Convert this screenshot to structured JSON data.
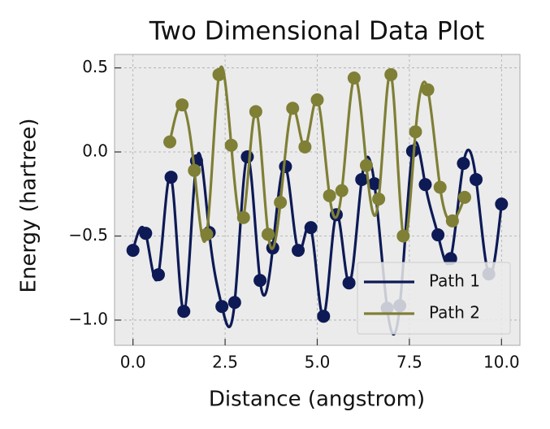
{
  "chart_data": {
    "type": "line",
    "title": "Two Dimensional Data Plot",
    "x_label": "Distance (angstrom)",
    "y_label": "Energy (hartree)",
    "xlim": [
      -0.5,
      10.5
    ],
    "ylim": [
      -1.15,
      0.58
    ],
    "xticks": [
      {
        "value": 0,
        "label": "0.0"
      },
      {
        "value": 2.5,
        "label": "2.5"
      },
      {
        "value": 5,
        "label": "5.0"
      },
      {
        "value": 7.5,
        "label": "7.5"
      },
      {
        "value": 10,
        "label": "10.0"
      }
    ],
    "yticks": [
      {
        "value": 0.5,
        "label": "0.5"
      },
      {
        "value": 0,
        "label": "0.0"
      },
      {
        "value": -0.5,
        "label": "−0.5"
      },
      {
        "value": -1,
        "label": "−1.0"
      }
    ],
    "grid": true,
    "legend": "lower right",
    "series": [
      {
        "name": "Path 1",
        "color": "#0d1a55",
        "x": [
          0,
          0.345,
          0.69,
          1.034,
          1.379,
          1.724,
          2.069,
          2.414,
          2.759,
          3.103,
          3.448,
          3.793,
          4.138,
          4.483,
          4.828,
          5.172,
          5.517,
          5.862,
          6.207,
          6.552,
          6.897,
          7.241,
          7.586,
          7.931,
          8.276,
          8.621,
          8.966,
          9.31,
          9.655,
          10
        ],
        "values": [
          -0.585,
          -0.484,
          -0.73,
          -0.15,
          -0.948,
          -0.053,
          -0.479,
          -0.919,
          -0.895,
          -0.029,
          -0.764,
          -0.571,
          -0.087,
          -0.585,
          -0.45,
          -0.977,
          -0.373,
          -0.779,
          -0.164,
          -0.189,
          -0.929,
          -0.914,
          0.005,
          -0.194,
          -0.493,
          -0.634,
          -0.068,
          -0.164,
          -0.726,
          -0.31
        ]
      },
      {
        "name": "Path 2",
        "color": "#7f7f36",
        "x": [
          1,
          1.333,
          1.667,
          2,
          2.333,
          2.667,
          3,
          3.333,
          3.667,
          4,
          4.333,
          4.667,
          5,
          5.333,
          5.667,
          6,
          6.333,
          6.667,
          7,
          7.333,
          7.667,
          8,
          8.333,
          8.667,
          9
        ],
        "values": [
          0.06,
          0.28,
          -0.11,
          -0.49,
          0.46,
          0.04,
          -0.39,
          0.24,
          -0.49,
          -0.3,
          0.26,
          0.03,
          0.31,
          -0.26,
          -0.23,
          0.44,
          -0.08,
          -0.28,
          0.46,
          -0.5,
          0.12,
          0.37,
          -0.21,
          -0.41,
          -0.27
        ]
      }
    ]
  }
}
